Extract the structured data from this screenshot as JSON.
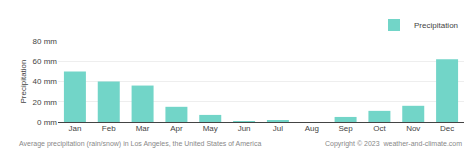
{
  "chart_data": {
    "type": "bar",
    "categories": [
      "Jan",
      "Feb",
      "Mar",
      "Apr",
      "May",
      "Jun",
      "Jul",
      "Aug",
      "Sep",
      "Oct",
      "Nov",
      "Dec"
    ],
    "series": [
      {
        "name": "Precipitation",
        "color": "#72d5c8",
        "values": [
          50,
          40,
          36,
          15,
          7,
          1,
          2,
          0,
          5,
          11,
          16,
          62
        ]
      }
    ],
    "ylabel": "Precipitation",
    "ylim": [
      0,
      80
    ],
    "yticks": [
      {
        "value": 0,
        "label": "0 mm"
      },
      {
        "value": 20,
        "label": "20 mm"
      },
      {
        "value": 40,
        "label": "40 mm"
      },
      {
        "value": 60,
        "label": "60 mm"
      },
      {
        "value": 80,
        "label": "80 mm"
      }
    ],
    "grid": true,
    "legend": "upper right",
    "annotations": [
      "Average precipitation (rain/snow) in Los Angeles, the United States of America",
      "Copyright © 2023  weather-and-climate.com"
    ]
  }
}
